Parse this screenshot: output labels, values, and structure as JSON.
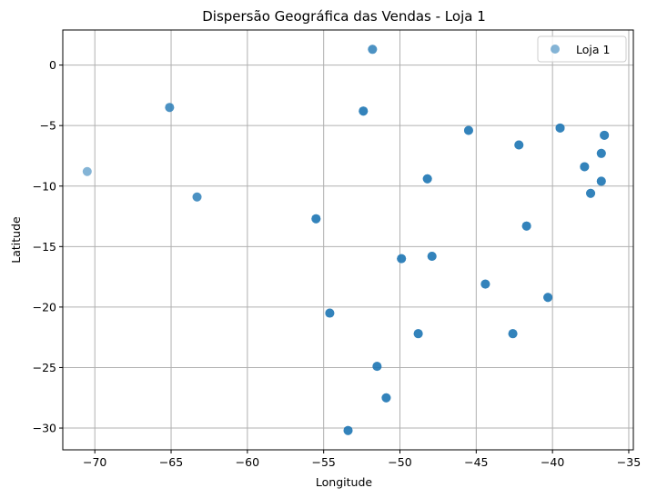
{
  "chart_data": {
    "type": "scatter",
    "title": "Dispersão Geográfica das Vendas - Loja 1",
    "xlabel": "Longitude",
    "ylabel": "Latitude",
    "xlim": [
      -72.1,
      -34.7
    ],
    "ylim": [
      -31.8,
      2.9
    ],
    "xticks": [
      -70,
      -65,
      -60,
      -55,
      -50,
      -45,
      -40,
      -35
    ],
    "yticks": [
      0,
      -5,
      -10,
      -15,
      -20,
      -25,
      -30
    ],
    "xtick_labels": [
      "−70",
      "−65",
      "−60",
      "−55",
      "−50",
      "−45",
      "−40",
      "−35"
    ],
    "ytick_labels": [
      "0",
      "−5",
      "−10",
      "−15",
      "−20",
      "−25",
      "−30"
    ],
    "grid": true,
    "legend_position": "top-right",
    "series": [
      {
        "name": "Loja 1",
        "color": "#1f77b4",
        "alpha": 0.55,
        "points": [
          {
            "x": -70.5,
            "y": -8.8,
            "density": 1
          },
          {
            "x": -65.1,
            "y": -3.5,
            "density": 2
          },
          {
            "x": -63.3,
            "y": -10.9,
            "density": 2
          },
          {
            "x": -55.5,
            "y": -12.7,
            "density": 3
          },
          {
            "x": -54.6,
            "y": -20.5,
            "density": 3
          },
          {
            "x": -53.4,
            "y": -30.2,
            "density": 3
          },
          {
            "x": -52.4,
            "y": -3.8,
            "density": 3
          },
          {
            "x": -51.8,
            "y": 1.3,
            "density": 2
          },
          {
            "x": -51.5,
            "y": -24.9,
            "density": 3
          },
          {
            "x": -50.9,
            "y": -27.5,
            "density": 3
          },
          {
            "x": -49.9,
            "y": -16.0,
            "density": 3
          },
          {
            "x": -48.8,
            "y": -22.2,
            "density": 3
          },
          {
            "x": -48.2,
            "y": -9.4,
            "density": 3
          },
          {
            "x": -47.9,
            "y": -15.8,
            "density": 3
          },
          {
            "x": -45.5,
            "y": -5.4,
            "density": 3
          },
          {
            "x": -44.4,
            "y": -18.1,
            "density": 3
          },
          {
            "x": -42.6,
            "y": -22.2,
            "density": 3
          },
          {
            "x": -42.2,
            "y": -6.6,
            "density": 3
          },
          {
            "x": -41.7,
            "y": -13.3,
            "density": 3
          },
          {
            "x": -40.3,
            "y": -19.2,
            "density": 3
          },
          {
            "x": -39.5,
            "y": -5.2,
            "density": 3
          },
          {
            "x": -37.9,
            "y": -8.4,
            "density": 3
          },
          {
            "x": -37.5,
            "y": -10.6,
            "density": 3
          },
          {
            "x": -36.8,
            "y": -7.3,
            "density": 3
          },
          {
            "x": -36.8,
            "y": -9.6,
            "density": 3
          },
          {
            "x": -36.6,
            "y": -5.8,
            "density": 3
          }
        ]
      }
    ]
  }
}
